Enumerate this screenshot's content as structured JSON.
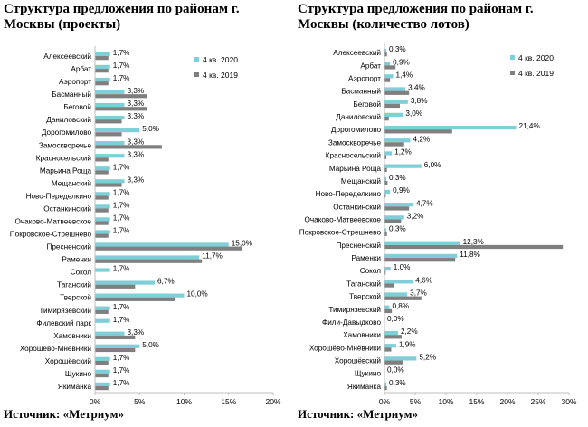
{
  "colors": {
    "q4_2020": "#7fcfd8",
    "q4_2019": "#7f7f7f",
    "axis": "#bfbfbf"
  },
  "chart_data": [
    {
      "type": "bar",
      "orientation": "horizontal",
      "title": "Структура предложения по районам г. Москвы (проекты)",
      "source": "Источник: «Метриум»",
      "xlim": [
        0,
        20
      ],
      "xticks": [
        "0%",
        "5%",
        "10%",
        "15%",
        "20%"
      ],
      "legend_position": "top-right",
      "grid": false,
      "categories": [
        "Алексеевский",
        "Арбат",
        "Аэропорт",
        "Басманный",
        "Беговой",
        "Даниловский",
        "Дорогомилово",
        "Замоскворечье",
        "Красносельский",
        "Марьина Роща",
        "Мещанский",
        "Ново-Переделкино",
        "Останкинский",
        "Очаково-Матвеевское",
        "Покровское-Стрешнево",
        "Пресненский",
        "Раменки",
        "Сокол",
        "Таганский",
        "Тверской",
        "Тимирязевский",
        "Филевский парк",
        "Хамовники",
        "Хорошёво-Мнёвники",
        "Хорошёвский",
        "Щукино",
        "Якиманка"
      ],
      "series": [
        {
          "name": "4 кв. 2020",
          "color": "#7fcfd8",
          "values": [
            1.7,
            1.7,
            1.7,
            3.3,
            3.3,
            3.3,
            5.0,
            3.3,
            3.3,
            1.7,
            3.3,
            1.7,
            1.7,
            1.7,
            1.7,
            15.0,
            11.7,
            1.7,
            6.7,
            10.0,
            1.7,
            1.7,
            3.3,
            5.0,
            1.7,
            1.7,
            1.7
          ],
          "labels": [
            "1,7%",
            "1,7%",
            "1,7%",
            "3,3%",
            "3,3%",
            "3,3%",
            "5,0%",
            "3,3%",
            "3,3%",
            "1,7%",
            "3,3%",
            "1,7%",
            "1,7%",
            "1,7%",
            "1,7%",
            "15,0%",
            "11,7%",
            "1,7%",
            "6,7%",
            "10,0%",
            "1,7%",
            "1,7%",
            "3,3%",
            "5,0%",
            "1,7%",
            "1,7%",
            "1,7%"
          ]
        },
        {
          "name": "4 кв. 2019",
          "color": "#7f7f7f",
          "values": [
            1.5,
            1.5,
            1.5,
            5.8,
            5.8,
            3.0,
            3.0,
            7.5,
            1.5,
            1.5,
            3.0,
            1.5,
            1.5,
            1.5,
            1.5,
            16.5,
            12.0,
            0,
            4.5,
            9.0,
            1.5,
            0,
            4.5,
            4.5,
            1.5,
            1.5,
            1.5
          ]
        }
      ]
    },
    {
      "type": "bar",
      "orientation": "horizontal",
      "title": "Структура предложения по районам г. Москвы (количество лотов)",
      "source": "Источник: «Метриум»",
      "xlim": [
        0,
        30
      ],
      "xticks": [
        "0%",
        "5%",
        "10%",
        "15%",
        "20%",
        "25%",
        "30%"
      ],
      "legend_position": "top-right",
      "grid": false,
      "categories": [
        "Алексеевский",
        "Арбат",
        "Аэропорт",
        "Басманный",
        "Беговой",
        "Даниловский",
        "Дорогомилово",
        "Замоскворечье",
        "Красносельский",
        "Марьина Роща",
        "Мещанский",
        "Ново-Переделкино",
        "Останкинский",
        "Очаково-Матвеевское",
        "Покровское-Стрешнево",
        "Пресненский",
        "Раменки",
        "Сокол",
        "Таганский",
        "Тверской",
        "Тимирязевский",
        "Фили-Давыдково",
        "Хамовники",
        "Хорошёво-Мнёвники",
        "Хорошёвский",
        "Щукино",
        "Якиманка"
      ],
      "series": [
        {
          "name": "4 кв. 2020",
          "color": "#7fcfd8",
          "values": [
            0.3,
            0.9,
            1.4,
            3.4,
            3.8,
            3.0,
            21.4,
            4.2,
            1.2,
            6.0,
            0.3,
            0.9,
            4.7,
            3.2,
            0.3,
            12.3,
            11.8,
            1.0,
            4.6,
            3.7,
            0.8,
            0.0,
            2.2,
            1.9,
            5.2,
            0.0,
            0.3
          ],
          "labels": [
            "0,3%",
            "0,9%",
            "1,4%",
            "3,4%",
            "3,8%",
            "3,0%",
            "21,4%",
            "4,2%",
            "1,2%",
            "6,0%",
            "0,3%",
            "0,9%",
            "4,7%",
            "3,2%",
            "0,3%",
            "12,3%",
            "11,8%",
            "1,0%",
            "4,6%",
            "3,7%",
            "0,8%",
            "0,0%",
            "2,2%",
            "1,9%",
            "5,2%",
            "0,0%",
            "0,3%"
          ]
        },
        {
          "name": "4 кв. 2019",
          "color": "#7f7f7f",
          "values": [
            0.4,
            1.8,
            0.9,
            4.0,
            2.5,
            0.7,
            11.0,
            3.2,
            0.3,
            0.4,
            0.5,
            0.2,
            4.0,
            2.7,
            0.4,
            29.0,
            11.5,
            0.2,
            1.5,
            6.0,
            1.2,
            0,
            2.8,
            1.1,
            3.0,
            0,
            0.4
          ]
        }
      ]
    }
  ]
}
